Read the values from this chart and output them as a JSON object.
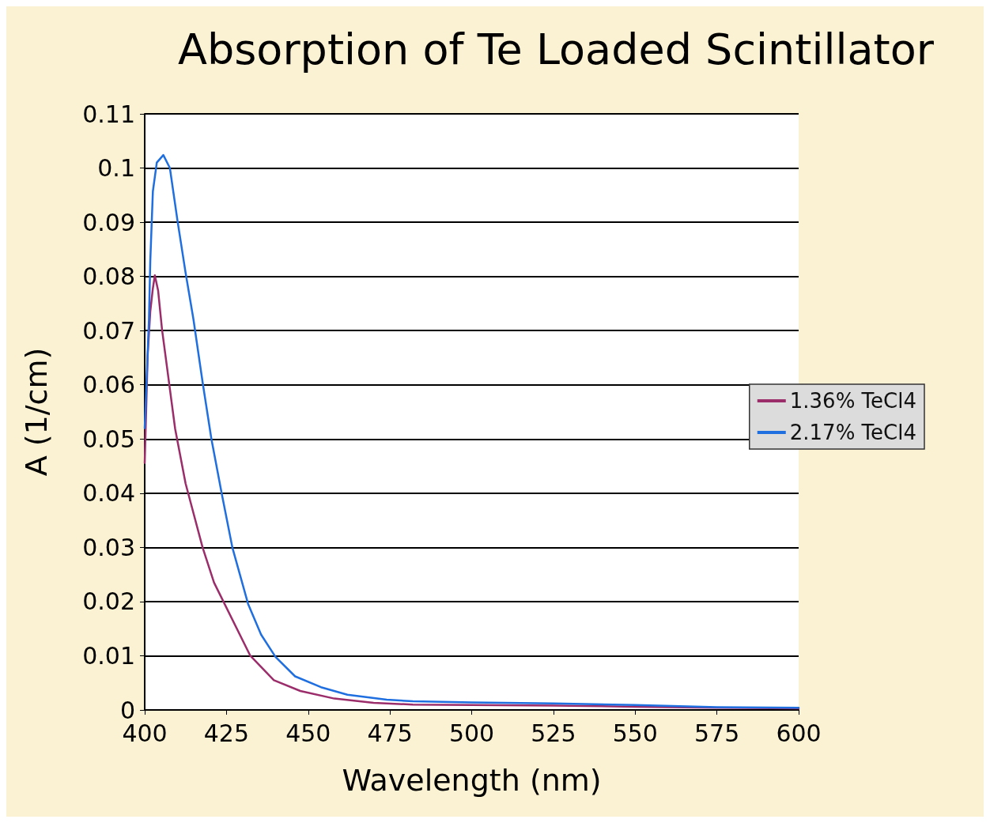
{
  "chart_data": {
    "type": "line",
    "title": "Absorption of Te Loaded Scintillator",
    "xlabel": "Wavelength (nm)",
    "ylabel": "A (1/cm)",
    "xlim": [
      400,
      600
    ],
    "xticks": [
      400,
      425,
      450,
      475,
      500,
      525,
      550,
      575,
      600
    ],
    "ylim": [
      0,
      0.11
    ],
    "yticks": [
      0,
      0.01,
      0.02,
      0.03,
      0.04,
      0.05,
      0.06,
      0.07,
      0.08,
      0.09,
      0.1,
      0.11
    ],
    "grid": "y",
    "legend": "right",
    "marker": "none",
    "line_style": "solid",
    "series": [
      {
        "name": "1.36% TeCl4",
        "color": "#9b2d6b",
        "x": [
          400,
          400.9,
          401.7,
          402.5,
          403.1,
          404.1,
          405.3,
          406.9,
          409.3,
          412.5,
          417.7,
          421.2,
          424.4,
          432.3,
          439.5,
          447.6,
          458,
          470,
          482,
          500,
          525,
          550,
          575,
          600
        ],
        "values": [
          0.0456,
          0.0654,
          0.0735,
          0.0778,
          0.0802,
          0.0774,
          0.0702,
          0.0629,
          0.0519,
          0.0418,
          0.03,
          0.0235,
          0.0196,
          0.01,
          0.0055,
          0.0035,
          0.0021,
          0.0013,
          0.001,
          0.0009,
          0.0008,
          0.0006,
          0.0004,
          0.0003
        ]
      },
      {
        "name": "2.17% TeCl4",
        "color": "#1f6fe0",
        "x": [
          400,
          401.3,
          401.7,
          402.5,
          403.7,
          405.7,
          407.7,
          410,
          412.5,
          414.9,
          417.7,
          420.4,
          423.6,
          426.8,
          431.6,
          435.6,
          440,
          446,
          453.9,
          462,
          474,
          482,
          500,
          525,
          550,
          575,
          600
        ],
        "values": [
          0.052,
          0.072,
          0.0827,
          0.0957,
          0.101,
          0.1024,
          0.1,
          0.0904,
          0.0807,
          0.0721,
          0.0605,
          0.05,
          0.0398,
          0.03,
          0.0196,
          0.0139,
          0.0098,
          0.0062,
          0.0042,
          0.0028,
          0.0019,
          0.0016,
          0.0014,
          0.0012,
          0.0009,
          0.0005,
          0.0004
        ]
      }
    ]
  }
}
